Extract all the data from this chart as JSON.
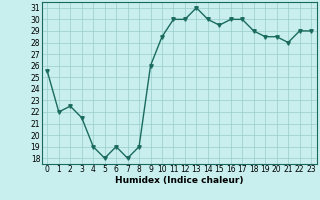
{
  "x": [
    0,
    1,
    2,
    3,
    4,
    5,
    6,
    7,
    8,
    9,
    10,
    11,
    12,
    13,
    14,
    15,
    16,
    17,
    18,
    19,
    20,
    21,
    22,
    23
  ],
  "y": [
    25.5,
    22.0,
    22.5,
    21.5,
    19.0,
    18.0,
    19.0,
    18.0,
    19.0,
    26.0,
    28.5,
    30.0,
    30.0,
    31.0,
    30.0,
    29.5,
    30.0,
    30.0,
    29.0,
    28.5,
    28.5,
    28.0,
    29.0,
    29.0
  ],
  "xlabel": "Humidex (Indice chaleur)",
  "ylim_min": 17.5,
  "ylim_max": 31.5,
  "yticks": [
    18,
    19,
    20,
    21,
    22,
    23,
    24,
    25,
    26,
    27,
    28,
    29,
    30,
    31
  ],
  "xlim_min": -0.5,
  "xlim_max": 23.5,
  "xticks": [
    0,
    1,
    2,
    3,
    4,
    5,
    6,
    7,
    8,
    9,
    10,
    11,
    12,
    13,
    14,
    15,
    16,
    17,
    18,
    19,
    20,
    21,
    22,
    23
  ],
  "xtick_labels": [
    "0",
    "1",
    "2",
    "3",
    "4",
    "5",
    "6",
    "7",
    "8",
    "9",
    "10",
    "11",
    "12",
    "13",
    "14",
    "15",
    "16",
    "17",
    "18",
    "19",
    "20",
    "21",
    "22",
    "23"
  ],
  "line_color": "#1a6b5e",
  "marker": "v",
  "marker_size": 2.5,
  "bg_color": "#c8eeee",
  "grid_color": "#99cccc",
  "line_width": 1.0,
  "xlabel_fontsize": 6.5,
  "tick_fontsize": 5.5
}
